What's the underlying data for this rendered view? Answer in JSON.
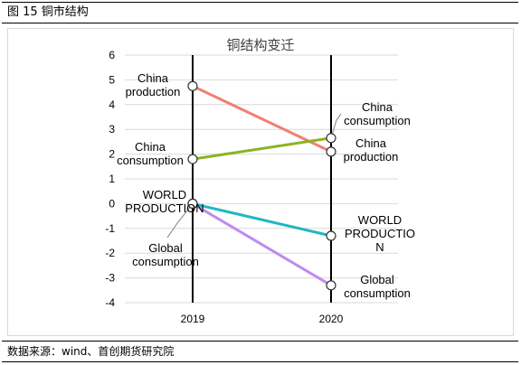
{
  "caption": "图 15 铜市结构",
  "source": "数据来源：wind、首创期货研究院",
  "chart_data": {
    "type": "line",
    "title": "铜结构变迁",
    "categories": [
      "2019",
      "2020"
    ],
    "ylim": [
      -4,
      6
    ],
    "yticks": [
      "-4",
      "-3",
      "-2",
      "-1",
      "0",
      "1",
      "2",
      "3",
      "4",
      "5",
      "6"
    ],
    "grid": true,
    "series": [
      {
        "key": "cp",
        "label": [
          "China",
          "production"
        ],
        "values": [
          4.75,
          2.1
        ],
        "color": "#f08070"
      },
      {
        "key": "cc",
        "label": [
          "China",
          "consumption"
        ],
        "values": [
          1.8,
          2.65
        ],
        "color": "#8db320"
      },
      {
        "key": "wp",
        "label": [
          "WORLD",
          "PRODUCTION"
        ],
        "values": [
          0,
          -1.3
        ],
        "color": "#1fb8c0"
      },
      {
        "key": "gc",
        "label": [
          "Global",
          "consumption"
        ],
        "values": [
          0,
          -3.3
        ],
        "color": "#c08af0"
      }
    ],
    "labels_2020": {
      "cc": [
        "China",
        "consumption"
      ],
      "cp": [
        "China",
        "production"
      ],
      "wp": [
        "WORLD",
        "PRODUCTIO",
        "N"
      ],
      "gc": [
        "Global",
        "consumption"
      ]
    }
  }
}
